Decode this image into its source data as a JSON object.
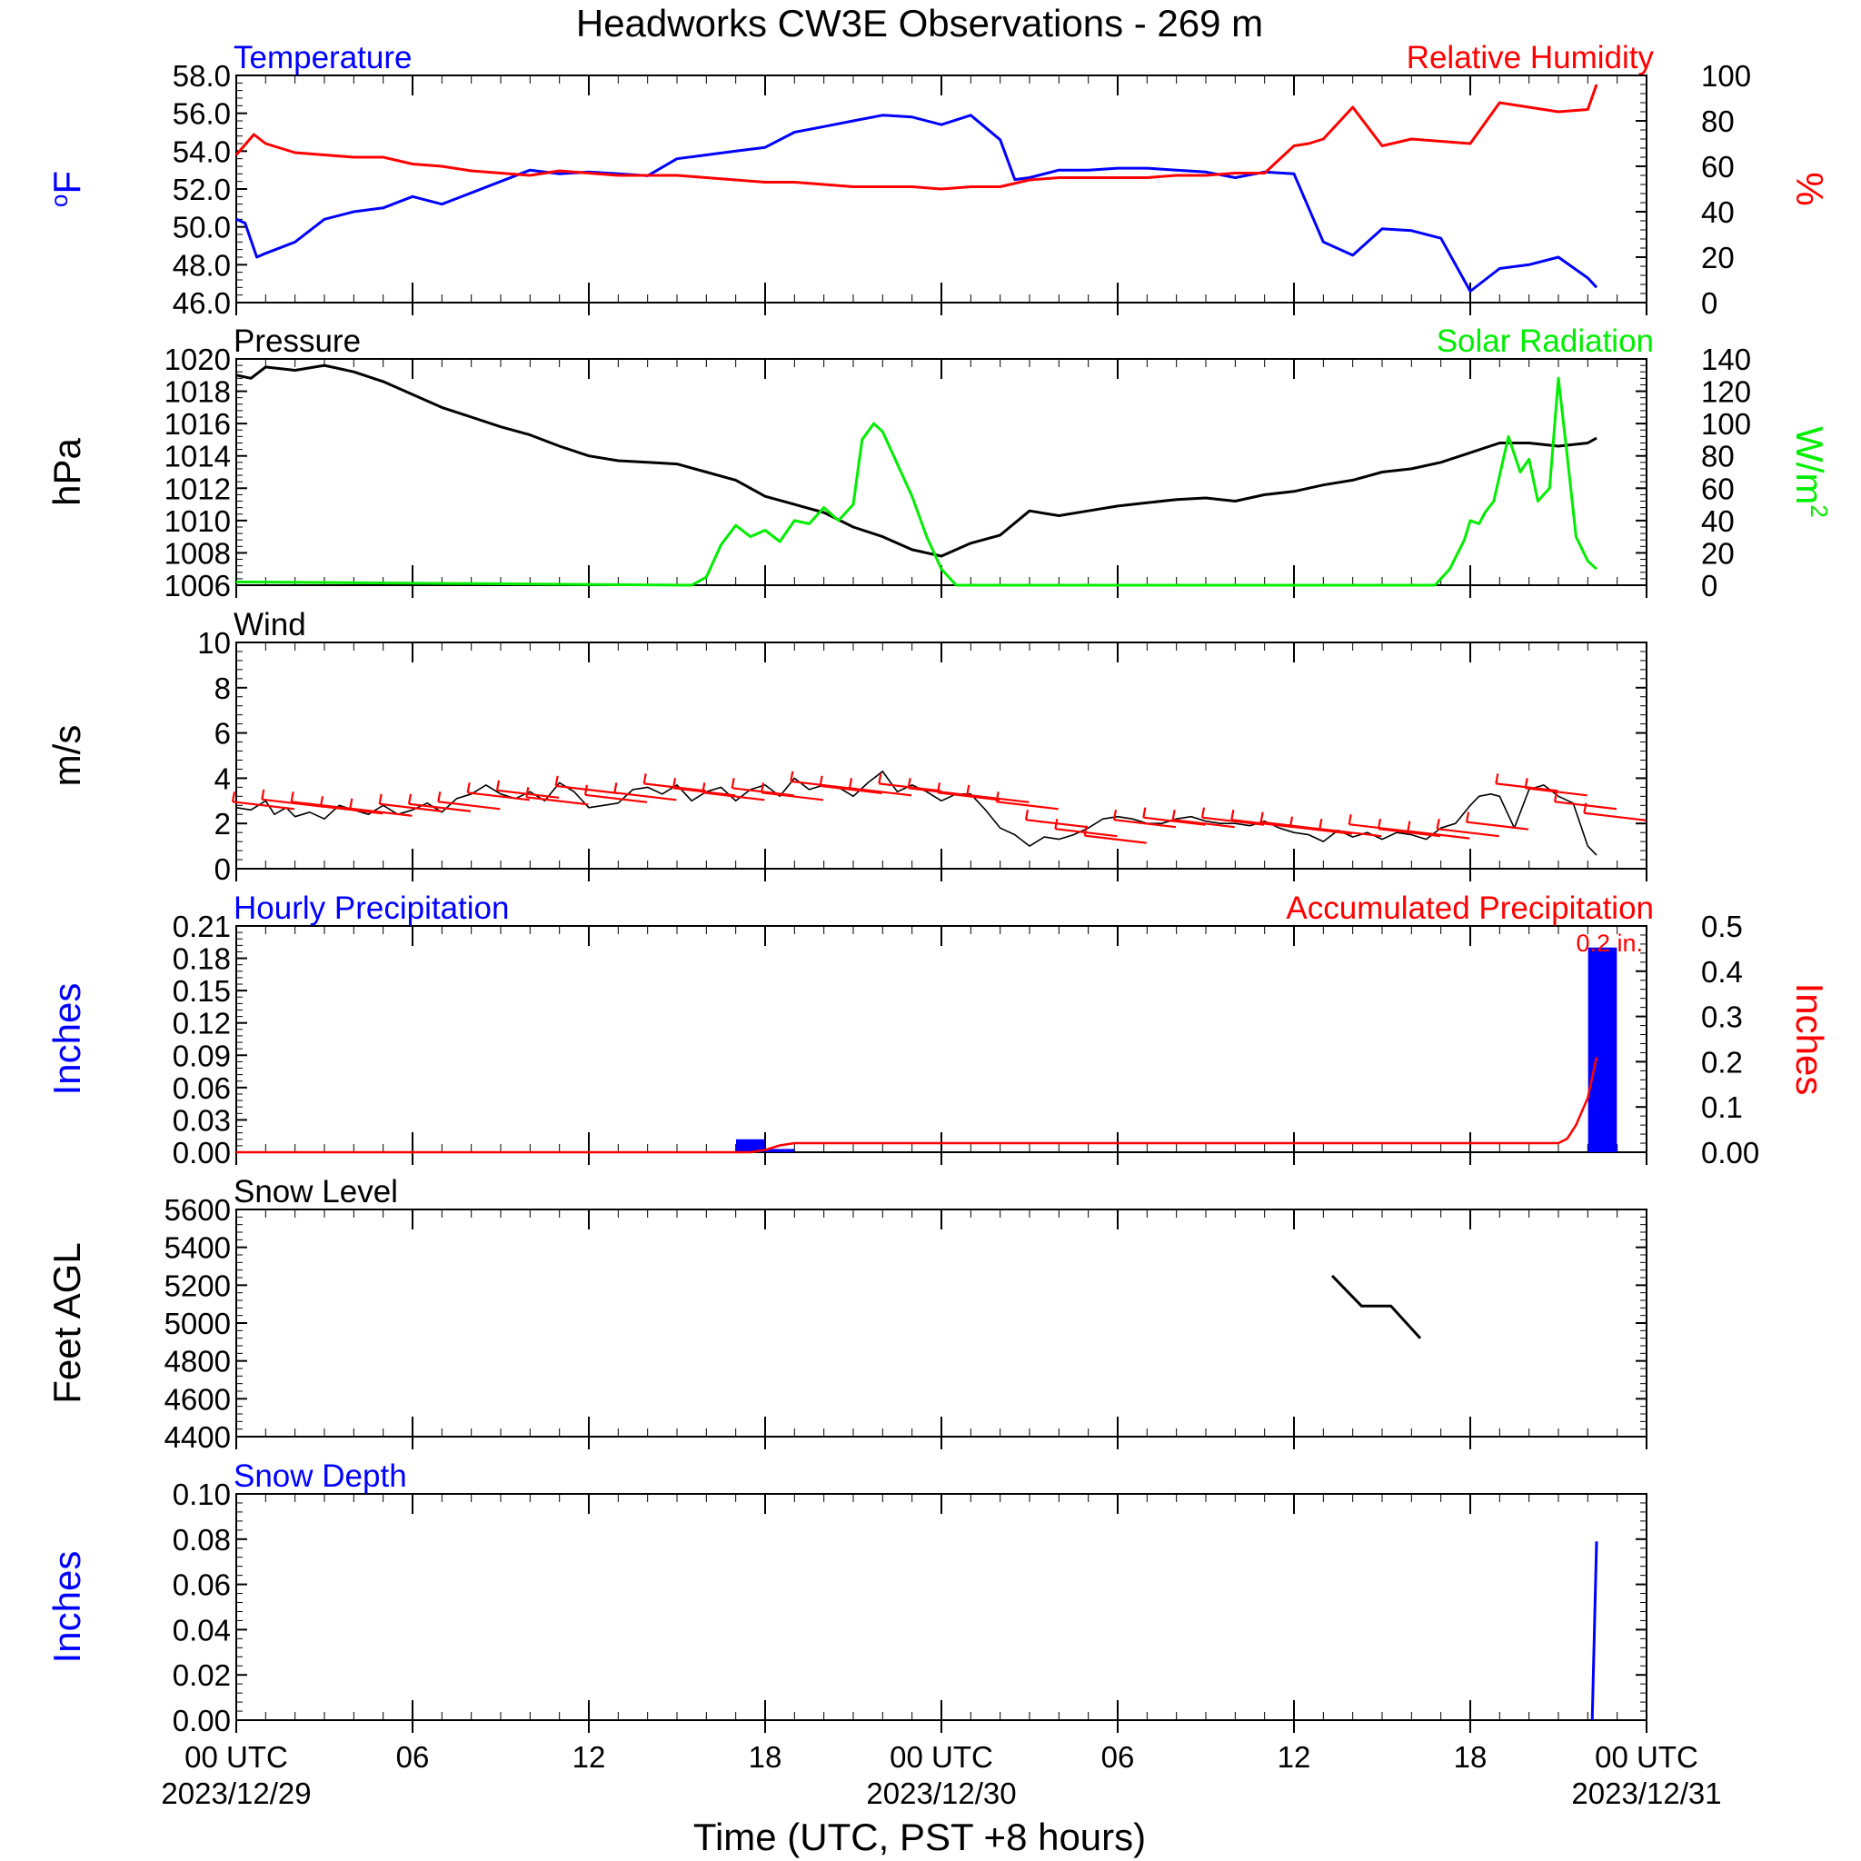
{
  "title": "Headworks CW3E Observations - 269 m",
  "x_axis": {
    "label": "Time (UTC, PST +8 hours)",
    "unit": "hours since 00 UTC 2023/12/29",
    "range": [
      0,
      48
    ],
    "ticks": [
      {
        "hour": 0,
        "label": "00 UTC",
        "date": "2023/12/29"
      },
      {
        "hour": 6,
        "label": "06",
        "date": ""
      },
      {
        "hour": 12,
        "label": "12",
        "date": ""
      },
      {
        "hour": 18,
        "label": "18",
        "date": ""
      },
      {
        "hour": 24,
        "label": "00 UTC",
        "date": "2023/12/30"
      },
      {
        "hour": 30,
        "label": "06",
        "date": ""
      },
      {
        "hour": 36,
        "label": "12",
        "date": ""
      },
      {
        "hour": 42,
        "label": "18",
        "date": ""
      },
      {
        "hour": 48,
        "label": "00 UTC",
        "date": "2023/12/31"
      }
    ]
  },
  "colors": {
    "blue": "#0000ff",
    "red": "#ff0000",
    "green": "#00ee00",
    "black": "#000000"
  },
  "chart_data": [
    {
      "id": "temp_rh",
      "type": "line",
      "left_title": "Temperature",
      "left_title_color": "#0000ff",
      "right_title": "Relative Humidity",
      "right_title_color": "#ff0000",
      "ylabel": "oF",
      "ylabel_color": "#0000ff",
      "y2label": "%",
      "y2label_color": "#ff0000",
      "ylim": [
        46,
        58
      ],
      "y_ticks": [
        "46.0",
        "48.0",
        "50.0",
        "52.0",
        "54.0",
        "56.0",
        "58.0"
      ],
      "y2lim": [
        0,
        100
      ],
      "y2_ticks": [
        "0",
        "20",
        "40",
        "60",
        "80",
        "100"
      ],
      "series": [
        {
          "axis": "left",
          "color": "#0000ff",
          "x": [
            0,
            0.3,
            0.7,
            1,
            2,
            3,
            4,
            5,
            6,
            7,
            8,
            9,
            10,
            11,
            12,
            13,
            14,
            15,
            16,
            17,
            18,
            19,
            20,
            21,
            22,
            23,
            24,
            25,
            26,
            26.5,
            27,
            28,
            29,
            30,
            31,
            32,
            33,
            34,
            35,
            36,
            37,
            38,
            39,
            40,
            41,
            42,
            43,
            44,
            45,
            46,
            46.3
          ],
          "y": [
            50.4,
            50.2,
            48.4,
            48.6,
            49.2,
            50.4,
            50.8,
            51.0,
            51.6,
            51.2,
            51.8,
            52.4,
            53.0,
            52.8,
            52.9,
            52.8,
            52.7,
            53.6,
            53.8,
            54.0,
            54.2,
            55.0,
            55.3,
            55.6,
            55.9,
            55.8,
            55.4,
            55.9,
            54.6,
            52.5,
            52.6,
            53.0,
            53.0,
            53.1,
            53.1,
            53.0,
            52.9,
            52.6,
            52.9,
            52.8,
            49.2,
            48.5,
            49.9,
            49.8,
            49.4,
            46.6,
            47.8,
            48.0,
            48.4,
            47.3,
            46.8
          ]
        },
        {
          "axis": "right",
          "color": "#ff0000",
          "x": [
            0,
            0.6,
            1,
            2,
            3,
            4,
            5,
            6,
            7,
            8,
            9,
            10,
            11,
            12,
            13,
            14,
            15,
            16,
            17,
            18,
            19,
            20,
            21,
            22,
            23,
            24,
            25,
            26,
            27,
            28,
            29,
            30,
            31,
            32,
            33,
            34,
            35,
            36,
            36.5,
            37,
            37.5,
            38,
            39,
            40,
            41,
            42,
            43,
            44,
            45,
            46,
            46.3
          ],
          "y": [
            65,
            74,
            70,
            66,
            65,
            64,
            64,
            61,
            60,
            58,
            57,
            56,
            58,
            57,
            56,
            56,
            56,
            55,
            54,
            53,
            53,
            52,
            51,
            51,
            51,
            50,
            51,
            51,
            54,
            55,
            55,
            55,
            55,
            56,
            56,
            57,
            57,
            69,
            70,
            72,
            79,
            86,
            69,
            72,
            71,
            70,
            88,
            86,
            84,
            85,
            96
          ]
        }
      ]
    },
    {
      "id": "pres_solar",
      "type": "line",
      "left_title": "Pressure",
      "left_title_color": "#000000",
      "right_title": "Solar Radiation",
      "right_title_color": "#00ee00",
      "ylabel": "hPa",
      "ylabel_color": "#000000",
      "y2label": "W/m2",
      "y2label_color": "#00ee00",
      "ylim": [
        1006,
        1020
      ],
      "y_ticks": [
        "1006",
        "1008",
        "1010",
        "1012",
        "1014",
        "1016",
        "1018",
        "1020"
      ],
      "y2lim": [
        0,
        140
      ],
      "y2_ticks": [
        "0",
        "20",
        "40",
        "60",
        "80",
        "100",
        "120",
        "140"
      ],
      "series": [
        {
          "axis": "left",
          "color": "#000000",
          "x": [
            0,
            0.5,
            1,
            2,
            3,
            4,
            5,
            6,
            7,
            8,
            9,
            10,
            11,
            12,
            13,
            14,
            15,
            16,
            17,
            18,
            19,
            20,
            21,
            22,
            23,
            24,
            25,
            26,
            27,
            28,
            29,
            30,
            31,
            32,
            33,
            34,
            35,
            36,
            37,
            38,
            39,
            40,
            41,
            42,
            43,
            44,
            45,
            46,
            46.3
          ],
          "y": [
            1019.0,
            1018.8,
            1019.5,
            1019.3,
            1019.6,
            1019.2,
            1018.6,
            1017.8,
            1017.0,
            1016.4,
            1015.8,
            1015.3,
            1014.6,
            1014.0,
            1013.7,
            1013.6,
            1013.5,
            1013.0,
            1012.5,
            1011.5,
            1011.0,
            1010.5,
            1009.6,
            1009.0,
            1008.2,
            1007.8,
            1008.6,
            1009.1,
            1010.6,
            1010.3,
            1010.6,
            1010.9,
            1011.1,
            1011.3,
            1011.4,
            1011.2,
            1011.6,
            1011.8,
            1012.2,
            1012.5,
            1013.0,
            1013.2,
            1013.6,
            1014.2,
            1014.8,
            1014.8,
            1014.6,
            1014.8,
            1015.1
          ]
        },
        {
          "axis": "right",
          "color": "#00ee00",
          "x": [
            0,
            15.5,
            16,
            16.5,
            17,
            17.5,
            18,
            18.5,
            19,
            19.5,
            20,
            20.5,
            21,
            21.3,
            21.7,
            22,
            22.5,
            23,
            23.5,
            24,
            24.5,
            25,
            40.8,
            41.3,
            41.8,
            42,
            42.3,
            42.5,
            42.8,
            43.3,
            43.7,
            44,
            44.3,
            44.7,
            45,
            45.3,
            45.6,
            46,
            46.3
          ],
          "y": [
            2,
            0,
            5,
            25,
            37,
            30,
            34,
            27,
            40,
            38,
            48,
            40,
            50,
            90,
            100,
            95,
            75,
            55,
            30,
            10,
            0,
            0,
            0,
            10,
            28,
            40,
            38,
            45,
            52,
            92,
            70,
            78,
            52,
            60,
            128,
            80,
            30,
            15,
            10
          ]
        }
      ]
    },
    {
      "id": "wind",
      "type": "line",
      "left_title": "Wind",
      "left_title_color": "#000000",
      "ylabel": "m/s",
      "ylabel_color": "#000000",
      "ylim": [
        0,
        10
      ],
      "y_ticks": [
        "0",
        "2",
        "4",
        "6",
        "8",
        "10"
      ],
      "series": [
        {
          "axis": "left",
          "color": "#000000",
          "x": [
            0,
            0.5,
            1,
            1.3,
            1.7,
            2,
            2.5,
            3,
            3.5,
            4,
            4.5,
            5,
            5.5,
            6,
            6.5,
            7,
            7.5,
            8,
            8.5,
            9,
            9.5,
            10,
            10.5,
            11,
            11.5,
            12,
            12.5,
            13,
            13.5,
            14,
            14.5,
            15,
            15.5,
            16,
            16.5,
            17,
            17.5,
            18,
            18.5,
            19,
            19.5,
            20,
            20.5,
            21,
            21.5,
            22,
            22.5,
            23,
            23.5,
            24,
            24.5,
            25,
            25.5,
            26,
            26.5,
            27,
            27.5,
            28,
            28.5,
            29,
            29.5,
            30,
            30.5,
            31,
            31.5,
            32,
            32.5,
            33,
            33.5,
            34,
            34.5,
            35,
            35.5,
            36,
            36.5,
            37,
            37.5,
            38,
            38.5,
            39,
            39.5,
            40,
            40.5,
            41,
            41.5,
            42,
            42.3,
            42.7,
            43,
            43.5,
            44,
            44.5,
            45,
            45.5,
            46,
            46.3
          ],
          "y": [
            2.7,
            2.6,
            3.0,
            2.4,
            2.7,
            2.3,
            2.5,
            2.2,
            2.8,
            2.6,
            2.4,
            2.8,
            2.4,
            2.6,
            2.9,
            2.5,
            3.1,
            3.3,
            3.7,
            3.3,
            3.1,
            3.4,
            3.0,
            3.8,
            3.4,
            2.7,
            2.8,
            2.9,
            3.5,
            3.6,
            3.3,
            3.7,
            3.0,
            3.4,
            3.6,
            3.0,
            3.5,
            3.7,
            3.2,
            4.0,
            3.5,
            3.7,
            3.6,
            3.2,
            3.8,
            4.3,
            3.4,
            3.7,
            3.4,
            3.0,
            3.3,
            3.3,
            2.6,
            1.8,
            1.5,
            1.0,
            1.4,
            1.3,
            1.5,
            1.8,
            2.2,
            2.3,
            2.2,
            2.0,
            2.0,
            2.2,
            2.3,
            2.1,
            2.0,
            2.0,
            1.9,
            2.1,
            1.8,
            1.6,
            1.5,
            1.2,
            1.7,
            1.4,
            1.6,
            1.3,
            1.6,
            1.5,
            1.3,
            1.8,
            2.0,
            2.8,
            3.2,
            3.3,
            3.2,
            1.8,
            3.5,
            3.7,
            3.2,
            2.9,
            1.0,
            0.6
          ]
        }
      ],
      "wind_barbs": {
        "color": "#ff0000",
        "hours": [
          0,
          1,
          2,
          3,
          4,
          5,
          6,
          7,
          8,
          9,
          10,
          11,
          12,
          13,
          14,
          15,
          16,
          17,
          18,
          19,
          20,
          21,
          22,
          23,
          24,
          25,
          26,
          27,
          28,
          29,
          30,
          31,
          32,
          33,
          34,
          35,
          36,
          37,
          38,
          39,
          40,
          41,
          42,
          43,
          44,
          45,
          46
        ],
        "speed": [
          2.8,
          2.9,
          2.8,
          2.6,
          2.5,
          2.7,
          2.7,
          2.8,
          3.2,
          3.3,
          3.0,
          3.5,
          3.1,
          3.2,
          3.6,
          3.4,
          3.2,
          3.4,
          3.2,
          3.7,
          3.5,
          3.4,
          3.6,
          3.4,
          3.2,
          3.1,
          2.8,
          2.0,
          1.6,
          1.3,
          2.0,
          2.1,
          2.0,
          2.1,
          2.0,
          1.9,
          1.7,
          1.6,
          1.8,
          1.6,
          1.5,
          1.6,
          1.9,
          3.6,
          3.4,
          2.8,
          2.3
        ]
      }
    },
    {
      "id": "precip",
      "type": "bar",
      "left_title": "Hourly Precipitation",
      "left_title_color": "#0000ff",
      "right_title": "Accumulated Precipitation",
      "right_title_color": "#ff0000",
      "ylabel": "Inches",
      "ylabel_color": "#0000ff",
      "y2label": "Inches",
      "y2label_color": "#ff0000",
      "ylim": [
        0,
        0.21
      ],
      "y_ticks": [
        "0.00",
        "0.03",
        "0.06",
        "0.09",
        "0.12",
        "0.15",
        "0.18",
        "0.21"
      ],
      "y2lim": [
        0,
        0.5
      ],
      "y2_ticks": [
        "0.00",
        "0.1",
        "0.2",
        "0.3",
        "0.4",
        "0.5"
      ],
      "annotation": "0.2 in.",
      "bars": {
        "color": "#0000ff",
        "x": [
          17.5,
          18.5,
          46.5
        ],
        "values": [
          0.012,
          0.003,
          0.19
        ]
      },
      "accumulation": {
        "color": "#ff0000",
        "x": [
          0,
          17.5,
          18,
          18.5,
          19,
          20,
          21,
          22,
          22.5,
          23,
          23.5,
          24,
          25,
          26,
          30,
          40,
          41,
          42,
          43,
          44,
          45,
          45.3,
          45.6,
          46,
          46.3
        ],
        "y": [
          0,
          0,
          0.005,
          0.015,
          0.02,
          0.02,
          0.02,
          0.02,
          0.02,
          0.02,
          0.02,
          0.02,
          0.02,
          0.02,
          0.02,
          0.02,
          0.02,
          0.02,
          0.02,
          0.02,
          0.02,
          0.03,
          0.06,
          0.12,
          0.21
        ]
      }
    },
    {
      "id": "snow_level",
      "type": "line",
      "left_title": "Snow Level",
      "left_title_color": "#000000",
      "ylabel": "Feet AGL",
      "ylabel_color": "#000000",
      "ylim": [
        4400,
        5600
      ],
      "y_ticks": [
        "4400",
        "4600",
        "4800",
        "5000",
        "5200",
        "5400",
        "5600"
      ],
      "series": [
        {
          "axis": "left",
          "color": "#000000",
          "x": [
            37.3,
            38.3,
            39.3,
            40.3
          ],
          "y": [
            5250,
            5090,
            5090,
            4920
          ]
        }
      ]
    },
    {
      "id": "snow_depth",
      "type": "line",
      "left_title": "Snow Depth",
      "left_title_color": "#0000ff",
      "ylabel": "Inches",
      "ylabel_color": "#0000ff",
      "ylim": [
        0,
        0.1
      ],
      "y_ticks": [
        "0.00",
        "0.02",
        "0.04",
        "0.06",
        "0.08",
        "0.10"
      ],
      "series": [
        {
          "axis": "left",
          "color": "#0000ff",
          "x": [
            46.15,
            46.3
          ],
          "y": [
            0,
            0.079
          ]
        }
      ]
    }
  ]
}
